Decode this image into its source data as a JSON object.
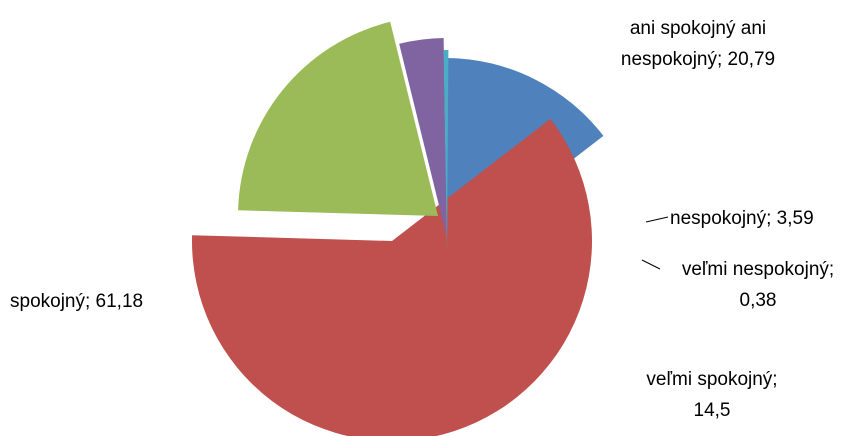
{
  "chart_data": {
    "type": "pie",
    "title": "",
    "exploded": true,
    "legend": "none",
    "slices": [
      {
        "label": "veľmi spokojný",
        "value": 14.5,
        "value_text": "14,5",
        "color": "#4f81bd"
      },
      {
        "label": "spokojný",
        "value": 61.18,
        "value_text": "61,18",
        "color": "#c0504d"
      },
      {
        "label": "ani spokojný ani nespokojný",
        "value": 20.79,
        "value_text": "20,79",
        "color": "#9bbb59"
      },
      {
        "label": "nespokojný",
        "value": 3.59,
        "value_text": "3,59",
        "color": "#8064a2"
      },
      {
        "label": "veľmi nespokojný",
        "value": 0.38,
        "value_text": "0,38",
        "color": "#4bacc6"
      }
    ]
  }
}
